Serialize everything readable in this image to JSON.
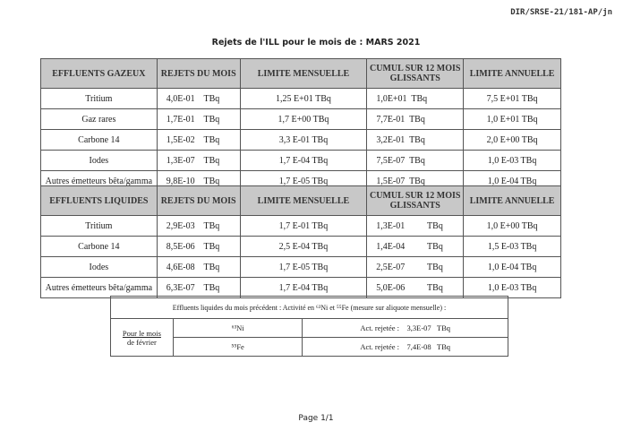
{
  "reference": "DIR/SRSE-21/181-AP/jn",
  "title": "Rejets de l'ILL pour le mois de : MARS 2021",
  "gaseous": {
    "headers": [
      "EFFLUENTS GAZEUX",
      "REJETS DU MOIS",
      "LIMITE MENSUELLE",
      "CUMUL SUR 12 MOIS GLISSANTS",
      "LIMITE ANNUELLE"
    ],
    "rows": [
      [
        "Tritium",
        "4,0E-01    TBq",
        "1,25 E+01 TBq",
        "1,0E+01  TBq",
        "7,5 E+01 TBq"
      ],
      [
        "Gaz rares",
        "1,7E-01    TBq",
        "1,7 E+00 TBq",
        "7,7E-01  TBq",
        "1,0 E+01 TBq"
      ],
      [
        "Carbone 14",
        "1,5E-02    TBq",
        "3,3 E-01 TBq",
        "3,2E-01  TBq",
        "2,0 E+00 TBq"
      ],
      [
        "Iodes",
        "1,3E-07    TBq",
        "1,7 E-04 TBq",
        "7,5E-07  TBq",
        "1,0 E-03 TBq"
      ],
      [
        "Autres émetteurs bêta/gamma",
        "9,8E-10    TBq",
        "1,7 E-05 TBq",
        "1,5E-07  TBq",
        "1,0 E-04 TBq"
      ]
    ]
  },
  "liquid": {
    "headers": [
      "EFFLUENTS LIQUIDES",
      "REJETS DU MOIS",
      "LIMITE MENSUELLE",
      "CUMUL SUR 12 MOIS GLISSANTS",
      "LIMITE ANNUELLE"
    ],
    "rows": [
      [
        "Tritium",
        "2,9E-03    TBq",
        "1,7 E-01 TBq",
        "1,3E-01          TBq",
        "1,0 E+00 TBq"
      ],
      [
        "Carbone 14",
        "8,5E-06    TBq",
        "2,5 E-04 TBq",
        "1,4E-04          TBq",
        "1,5 E-03 TBq"
      ],
      [
        "Iodes",
        "4,6E-08    TBq",
        "1,7 E-05 TBq",
        "2,5E-07          TBq",
        "1,0 E-04 TBq"
      ],
      [
        "Autres émetteurs bêta/gamma",
        "6,3E-07    TBq",
        "1,7 E-04 TBq",
        "5,0E-06          TBq",
        "1,0 E-03 TBq"
      ]
    ]
  },
  "previous": {
    "caption": "Effluents liquides du mois précédent : Activité en ⁶³Ni et ⁵⁵Fe (mesure sur aliquote mensuelle) :",
    "period_line1": "Pour le mois",
    "period_line2": "de février",
    "rows": [
      [
        "⁶³Ni",
        "Act. rejetée :    3,3E-07   TBq"
      ],
      [
        "⁵⁵Fe",
        "Act. rejetée :    7,4E-08   TBq"
      ]
    ]
  },
  "page": "Page 1/1"
}
